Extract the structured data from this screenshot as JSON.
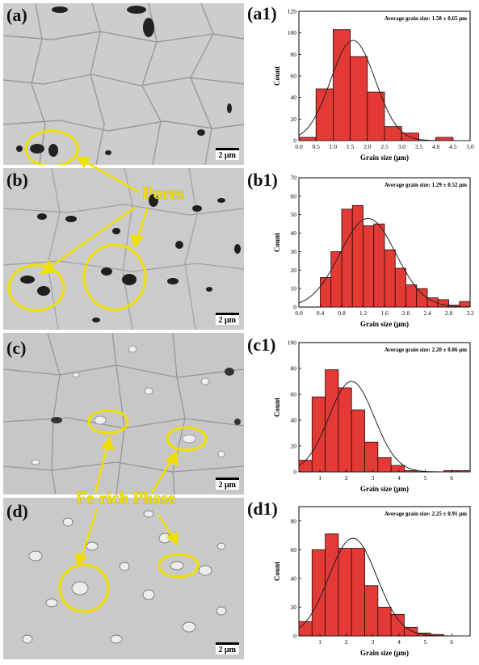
{
  "panels": [
    {
      "label": "(a)",
      "scale": "2 μm"
    },
    {
      "label": "(b)",
      "scale": "2 μm"
    },
    {
      "label": "(c)",
      "scale": "2 μm"
    },
    {
      "label": "(d)",
      "scale": "2 μm"
    }
  ],
  "annotations": {
    "pores": "Pores",
    "fe_rich": "Fe-rich Phase"
  },
  "colors": {
    "bar": "#e33a36",
    "bar_edge": "#2a0a0a",
    "annot": "#f1df00",
    "fit": "#222222"
  },
  "chart_data": [
    {
      "type": "bar",
      "label": "(a1)",
      "title": "Average grain size: 1.58 ± 0.65 μm",
      "xlabel": "Grain size (μm)",
      "ylabel": "Count",
      "xlim": [
        0,
        5
      ],
      "ylim": [
        0,
        120
      ],
      "xticks": [
        "0.0",
        "0.5",
        "1.0",
        "1.5",
        "2.0",
        "2.5",
        "3.0",
        "3.5",
        "4.0",
        "4.5",
        "5.0"
      ],
      "yticks": [
        "0",
        "20",
        "40",
        "60",
        "80",
        "100",
        "120"
      ],
      "bin_edges": [
        0,
        0.5,
        1.0,
        1.5,
        2.0,
        2.5,
        3.0,
        3.5,
        4.0,
        4.5,
        5.0
      ],
      "values": [
        3,
        48,
        103,
        78,
        45,
        13,
        7,
        0,
        3,
        0
      ],
      "fit": {
        "mean": 1.58,
        "sd": 0.65,
        "peak": 93
      }
    },
    {
      "type": "bar",
      "label": "(b1)",
      "title": "Average grain size: 1.29 ± 0.52 μm",
      "xlabel": "Grain size (μm)",
      "ylabel": "Count",
      "xlim": [
        0,
        3.2
      ],
      "ylim": [
        0,
        70
      ],
      "xticks": [
        "0.0",
        "0.4",
        "0.8",
        "1.2",
        "1.6",
        "2.0",
        "2.4",
        "2.8",
        "3.2"
      ],
      "yticks": [
        "0",
        "10",
        "20",
        "30",
        "40",
        "50",
        "60",
        "70"
      ],
      "bin_edges": [
        0,
        0.2,
        0.4,
        0.6,
        0.8,
        1.0,
        1.2,
        1.4,
        1.6,
        1.8,
        2.0,
        2.2,
        2.4,
        2.6,
        2.8,
        3.0,
        3.2
      ],
      "values": [
        0,
        0,
        16,
        30,
        53,
        55,
        44,
        45,
        31,
        21,
        12,
        10,
        5,
        4,
        1,
        3
      ],
      "fit": {
        "mean": 1.29,
        "sd": 0.52,
        "peak": 48
      }
    },
    {
      "type": "bar",
      "label": "(c1)",
      "title": "Average grain size: 2.20 ± 0.86 μm",
      "xlabel": "Grain size (μm)",
      "ylabel": "Count",
      "xlim": [
        0.2,
        6.7
      ],
      "ylim": [
        0,
        100
      ],
      "xticks": [
        "1",
        "2",
        "3",
        "4",
        "5",
        "6"
      ],
      "xtick_values": [
        1,
        2,
        3,
        4,
        5,
        6
      ],
      "yticks": [
        "0",
        "20",
        "40",
        "60",
        "80",
        "100"
      ],
      "bin_edges": [
        0.2,
        0.7,
        1.2,
        1.7,
        2.2,
        2.7,
        3.2,
        3.7,
        4.2,
        4.7,
        5.2,
        5.7,
        6.2,
        6.7
      ],
      "values": [
        9,
        58,
        79,
        65,
        48,
        23,
        11,
        5,
        1,
        0,
        0,
        1,
        1
      ],
      "fit": {
        "mean": 2.2,
        "sd": 0.86,
        "peak": 70
      }
    },
    {
      "type": "bar",
      "label": "(d1)",
      "title": "Average grain size: 2.25 ± 0.91 μm",
      "xlabel": "Grain size (μm)",
      "ylabel": "Count",
      "xlim": [
        0.2,
        6.7
      ],
      "ylim": [
        0,
        90
      ],
      "xticks": [
        "1",
        "2",
        "3",
        "4",
        "5",
        "6"
      ],
      "xtick_values": [
        1,
        2,
        3,
        4,
        5,
        6
      ],
      "yticks": [
        "0",
        "20",
        "40",
        "60",
        "80"
      ],
      "ytick_values": [
        0,
        20,
        40,
        60,
        80
      ],
      "bin_edges": [
        0.2,
        0.7,
        1.2,
        1.7,
        2.2,
        2.7,
        3.2,
        3.7,
        4.2,
        4.7,
        5.2,
        5.7,
        6.2,
        6.7
      ],
      "values": [
        10,
        60,
        71,
        61,
        61,
        35,
        20,
        15,
        6,
        2,
        1,
        0,
        0
      ],
      "fit": {
        "mean": 2.25,
        "sd": 0.91,
        "peak": 68
      }
    }
  ]
}
